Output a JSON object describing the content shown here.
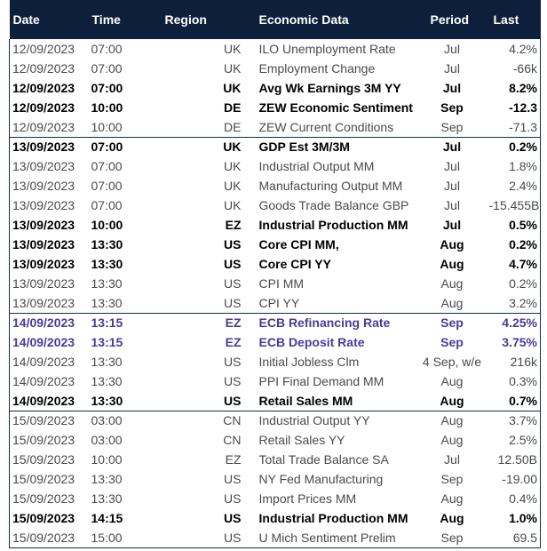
{
  "headers": {
    "date": "Date",
    "time": "Time",
    "region": "Region",
    "economic_data": "Economic Data",
    "period": "Period",
    "last": "Last"
  },
  "colors": {
    "header_bg": "#0e1f3c",
    "highlight_text": "#4b3a9c"
  },
  "rows": [
    {
      "date": "12/09/2023",
      "time": "07:00",
      "region": "UK",
      "data": "ILO Unemployment Rate",
      "period": "Jul",
      "last": "4.2%",
      "style": "normal",
      "group_start": false
    },
    {
      "date": "12/09/2023",
      "time": "07:00",
      "region": "UK",
      "data": "Employment Change",
      "period": "Jul",
      "last": "-66k",
      "style": "normal",
      "group_start": false
    },
    {
      "date": "12/09/2023",
      "time": "07:00",
      "region": "UK",
      "data": "Avg Wk Earnings 3M YY",
      "period": "Jul",
      "last": "8.2%",
      "style": "bold",
      "group_start": false
    },
    {
      "date": "12/09/2023",
      "time": "10:00",
      "region": "DE",
      "data": "ZEW Economic Sentiment",
      "period": "Sep",
      "last": "-12.3",
      "style": "bold",
      "group_start": false
    },
    {
      "date": "12/09/2023",
      "time": "10:00",
      "region": "DE",
      "data": "ZEW Current Conditions",
      "period": "Sep",
      "last": "-71.3",
      "style": "normal",
      "group_start": false
    },
    {
      "date": "13/09/2023",
      "time": "07:00",
      "region": "UK",
      "data": "GDP Est 3M/3M",
      "period": "Jul",
      "last": "0.2%",
      "style": "bold",
      "group_start": true
    },
    {
      "date": "13/09/2023",
      "time": "07:00",
      "region": "UK",
      "data": "Industrial Output MM",
      "period": "Jul",
      "last": "1.8%",
      "style": "normal",
      "group_start": false
    },
    {
      "date": "13/09/2023",
      "time": "07:00",
      "region": "UK",
      "data": "Manufacturing Output MM",
      "period": "Jul",
      "last": "2.4%",
      "style": "normal",
      "group_start": false
    },
    {
      "date": "13/09/2023",
      "time": "07:00",
      "region": "UK",
      "data": "Goods Trade Balance GBP",
      "period": "Jul",
      "last": "-15.455B",
      "style": "normal",
      "group_start": false
    },
    {
      "date": "13/09/2023",
      "time": "10:00",
      "region": "EZ",
      "data": "Industrial Production MM",
      "period": "Jul",
      "last": "0.5%",
      "style": "bold",
      "group_start": false
    },
    {
      "date": "13/09/2023",
      "time": "13:30",
      "region": "US",
      "data": "Core CPI MM,",
      "period": "Aug",
      "last": "0.2%",
      "style": "bold",
      "group_start": false
    },
    {
      "date": "13/09/2023",
      "time": "13:30",
      "region": "US",
      "data": "Core CPI YY",
      "period": "Aug",
      "last": "4.7%",
      "style": "bold",
      "group_start": false
    },
    {
      "date": "13/09/2023",
      "time": "13:30",
      "region": "US",
      "data": "CPI MM",
      "period": "Aug",
      "last": "0.2%",
      "style": "normal",
      "group_start": false
    },
    {
      "date": "13/09/2023",
      "time": "13:30",
      "region": "US",
      "data": "CPI YY",
      "period": "Aug",
      "last": "3.2%",
      "style": "normal",
      "group_start": false
    },
    {
      "date": "14/09/2023",
      "time": "13:15",
      "region": "EZ",
      "data": "ECB Refinancing Rate",
      "period": "Sep",
      "last": "4.25%",
      "style": "purple",
      "group_start": true
    },
    {
      "date": "14/09/2023",
      "time": "13:15",
      "region": "EZ",
      "data": "ECB Deposit Rate",
      "period": "Sep",
      "last": "3.75%",
      "style": "purple",
      "group_start": false
    },
    {
      "date": "14/09/2023",
      "time": "13:30",
      "region": "US",
      "data": "Initial Jobless Clm",
      "period": "4 Sep, w/e",
      "last": "216k",
      "style": "normal",
      "group_start": false
    },
    {
      "date": "14/09/2023",
      "time": "13:30",
      "region": "US",
      "data": "PPI Final Demand MM",
      "period": "Aug",
      "last": "0.3%",
      "style": "normal",
      "group_start": false
    },
    {
      "date": "14/09/2023",
      "time": "13:30",
      "region": "US",
      "data": "Retail Sales MM",
      "period": "Aug",
      "last": "0.7%",
      "style": "bold",
      "group_start": false
    },
    {
      "date": "15/09/2023",
      "time": "03:00",
      "region": "CN",
      "data": "Industrial Output YY",
      "period": "Aug",
      "last": "3.7%",
      "style": "normal",
      "group_start": true
    },
    {
      "date": "15/09/2023",
      "time": "03:00",
      "region": "CN",
      "data": "Retail Sales YY",
      "period": "Aug",
      "last": "2.5%",
      "style": "normal",
      "group_start": false
    },
    {
      "date": "15/09/2023",
      "time": "10:00",
      "region": "EZ",
      "data": "Total Trade Balance SA",
      "period": "Jul",
      "last": "12.50B",
      "style": "normal",
      "group_start": false
    },
    {
      "date": "15/09/2023",
      "time": "13:30",
      "region": "US",
      "data": "NY Fed Manufacturing",
      "period": "Sep",
      "last": "-19.00",
      "style": "normal",
      "group_start": false
    },
    {
      "date": "15/09/2023",
      "time": "13:30",
      "region": "US",
      "data": "Import Prices MM",
      "period": "Aug",
      "last": "0.4%",
      "style": "normal",
      "group_start": false
    },
    {
      "date": "15/09/2023",
      "time": "14:15",
      "region": "US",
      "data": "Industrial Production MM",
      "period": "Aug",
      "last": "1.0%",
      "style": "bold",
      "group_start": false
    },
    {
      "date": "15/09/2023",
      "time": "15:00",
      "region": "US",
      "data": "U Mich Sentiment Prelim",
      "period": "Sep",
      "last": "69.5",
      "style": "normal",
      "group_start": false
    }
  ]
}
